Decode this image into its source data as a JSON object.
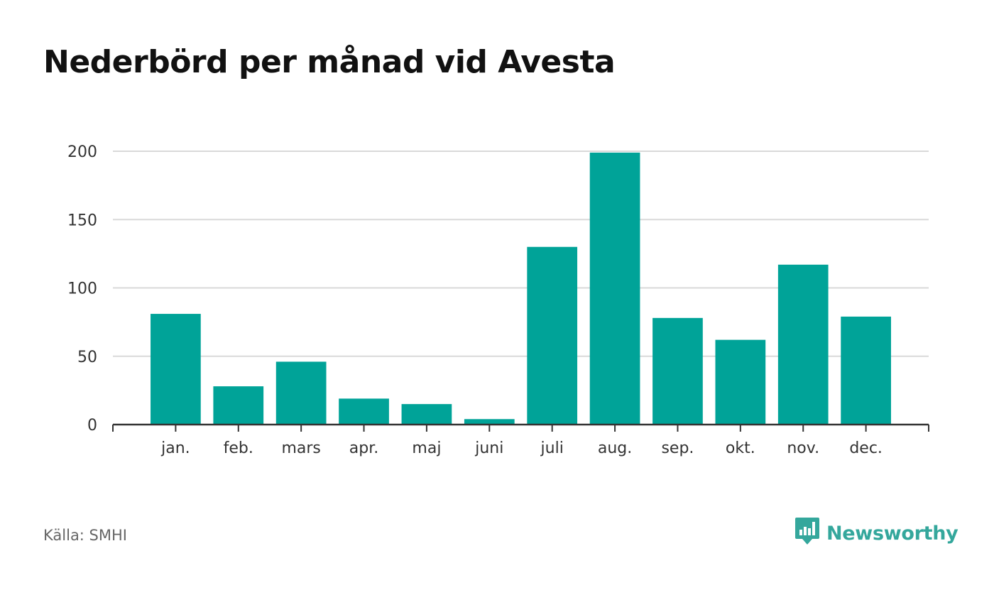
{
  "title": "Nederbörd per månad vid Avesta",
  "source": "Källa: SMHI",
  "brand": "Newsworthy",
  "brand_icon": "newsworthy-logo-icon",
  "colors": {
    "bar": "#00a398",
    "grid": "#d9d9d9",
    "axis": "#333333",
    "brand": "#34a79c"
  },
  "chart_data": {
    "type": "bar",
    "title": "Nederbörd per månad vid Avesta",
    "xlabel": "",
    "ylabel": "",
    "categories": [
      "jan.",
      "feb.",
      "mars",
      "apr.",
      "maj",
      "juni",
      "juli",
      "aug.",
      "sep.",
      "okt.",
      "nov.",
      "dec."
    ],
    "values": [
      81,
      28,
      46,
      19,
      15,
      4,
      130,
      199,
      78,
      62,
      117,
      79
    ],
    "ylim": [
      0,
      200
    ],
    "yticks": [
      0,
      50,
      100,
      150,
      200
    ],
    "ytick_labels": [
      "0",
      "50",
      "100",
      "150",
      "200"
    ],
    "grid": true,
    "legend": "none"
  }
}
